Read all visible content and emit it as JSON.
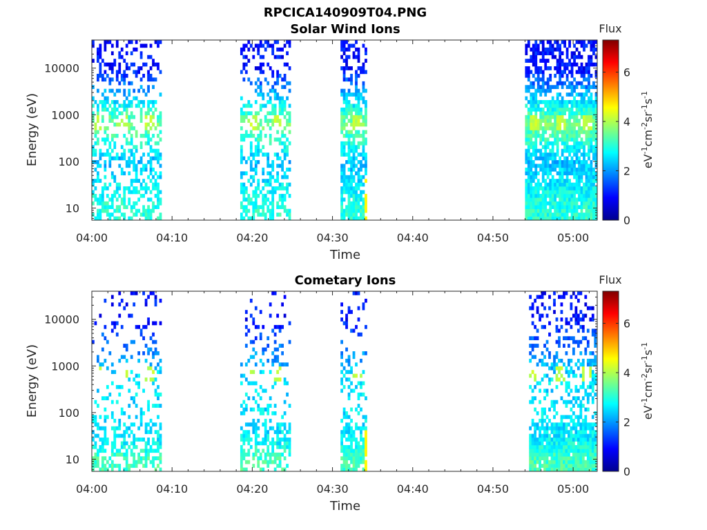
{
  "figure": {
    "title": "RPCICA140909T04.PNG"
  },
  "chart_data": [
    {
      "type": "heatmap",
      "title": "Solar Wind Ions",
      "xlabel": "Time",
      "ylabel": "Energy (eV)",
      "x_range_minutes": [
        0,
        63
      ],
      "x_ticks": [
        {
          "m": 0,
          "label": "04:00"
        },
        {
          "m": 10,
          "label": "04:10"
        },
        {
          "m": 20,
          "label": "04:20"
        },
        {
          "m": 30,
          "label": "04:30"
        },
        {
          "m": 40,
          "label": "04:40"
        },
        {
          "m": 50,
          "label": "04:50"
        },
        {
          "m": 60,
          "label": "05:00"
        }
      ],
      "y_scale": "log",
      "y_range_eV": [
        5.5,
        40000
      ],
      "y_ticks": [
        {
          "v": 10,
          "label": "10"
        },
        {
          "v": 100,
          "label": "100"
        },
        {
          "v": 1000,
          "label": "1000"
        },
        {
          "v": 10000,
          "label": "10000"
        }
      ],
      "colorbar": {
        "title": "Flux",
        "label": "eV-1cm-2sr-1s-1",
        "range": [
          0,
          7.3
        ],
        "ticks": [
          0,
          2,
          4,
          6
        ],
        "colormap": "jet"
      },
      "active_intervals_minutes": [
        [
          0,
          8.5
        ],
        [
          18.5,
          24.8
        ],
        [
          31,
          34.2
        ],
        [
          54,
          62.8
        ]
      ],
      "flux_summary": [
        {
          "energy_eV": 10,
          "flux": 3.0
        },
        {
          "energy_eV": 100,
          "flux": 2.3
        },
        {
          "energy_eV": 650,
          "flux": 3.6
        },
        {
          "energy_eV": 10000,
          "flux": 1.0
        }
      ],
      "peaks_minutes": [
        0.6,
        3.8,
        7.0,
        20.0,
        23.2,
        32.9,
        55.0,
        58.3,
        61.5
      ],
      "bright_column_minutes": 34
    },
    {
      "type": "heatmap",
      "title": "Cometary Ions",
      "xlabel": "Time",
      "ylabel": "Energy (eV)",
      "x_range_minutes": [
        0,
        63
      ],
      "x_ticks": [
        {
          "m": 0,
          "label": "04:00"
        },
        {
          "m": 10,
          "label": "04:10"
        },
        {
          "m": 20,
          "label": "04:20"
        },
        {
          "m": 30,
          "label": "04:30"
        },
        {
          "m": 40,
          "label": "04:40"
        },
        {
          "m": 50,
          "label": "04:50"
        },
        {
          "m": 60,
          "label": "05:00"
        }
      ],
      "y_scale": "log",
      "y_range_eV": [
        5.5,
        40000
      ],
      "y_ticks": [
        {
          "v": 10,
          "label": "10"
        },
        {
          "v": 100,
          "label": "100"
        },
        {
          "v": 1000,
          "label": "1000"
        },
        {
          "v": 10000,
          "label": "10000"
        }
      ],
      "colorbar": {
        "title": "Flux",
        "label": "eV-1cm-2sr-1s-1",
        "range": [
          0,
          7.3
        ],
        "ticks": [
          0,
          2,
          4,
          6
        ],
        "colormap": "jet"
      },
      "active_intervals_minutes": [
        [
          0,
          8.5
        ],
        [
          18.5,
          24.8
        ],
        [
          31,
          34.2
        ],
        [
          54.5,
          62.8
        ]
      ],
      "flux_summary": [
        {
          "energy_eV": 10,
          "flux": 3.2
        },
        {
          "energy_eV": 30,
          "flux": 2.6
        },
        {
          "energy_eV": 650,
          "flux": 2.5
        },
        {
          "energy_eV": 10000,
          "flux": 1.0
        }
      ],
      "peaks_minutes": [
        0.6,
        3.8,
        7.0,
        20.0,
        23.2,
        32.9,
        55.0,
        58.3,
        61.5
      ],
      "bright_column_minutes": 34
    }
  ]
}
